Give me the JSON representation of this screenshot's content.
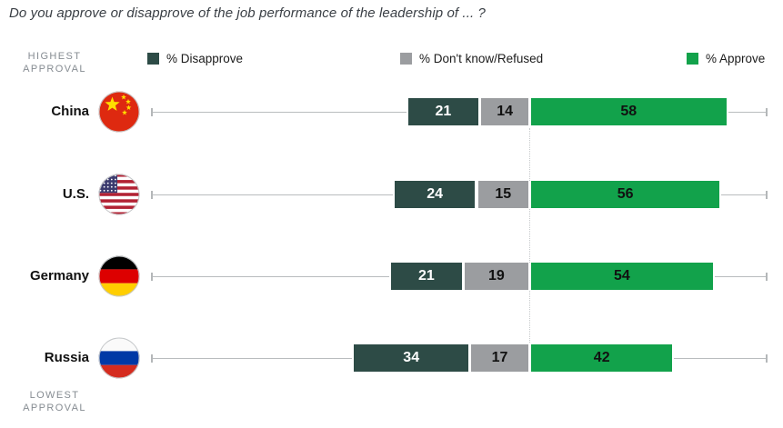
{
  "title": "Do you approve or disapprove of the job performance of the leadership of ... ?",
  "annotations": {
    "top": "HIGHEST\nAPPROVAL",
    "bottom": "LOWEST\nAPPROVAL"
  },
  "legend": [
    {
      "label": "% Disapprove",
      "color": "#2d4b46"
    },
    {
      "label": "% Don't know/Refused",
      "color": "#9b9da0"
    },
    {
      "label": "% Approve",
      "color": "#12a24b"
    }
  ],
  "chart_data": {
    "type": "bar",
    "variant": "horizontal-diverging-stacked",
    "title": "Do you approve or disapprove of the job performance of the leadership of ... ?",
    "categories": [
      "China",
      "U.S.",
      "Germany",
      "Russia"
    ],
    "flags": [
      "china-flag-icon",
      "us-flag-icon",
      "germany-flag-icon",
      "russia-flag-icon"
    ],
    "series": [
      {
        "name": "% Disapprove",
        "color": "#2d4b46",
        "text_color": "#ffffff",
        "values": [
          21,
          24,
          21,
          34
        ]
      },
      {
        "name": "% Don't know/Refused",
        "color": "#9b9da0",
        "text_color": "#111111",
        "values": [
          14,
          15,
          19,
          17
        ]
      },
      {
        "name": "% Approve",
        "color": "#12a24b",
        "text_color": "#111111",
        "values": [
          58,
          56,
          54,
          42
        ]
      }
    ],
    "sort_note": "rows ordered highest approval (top) to lowest approval (bottom)",
    "legend_position": "top",
    "grid": "off",
    "value_labels": "inside bars"
  }
}
